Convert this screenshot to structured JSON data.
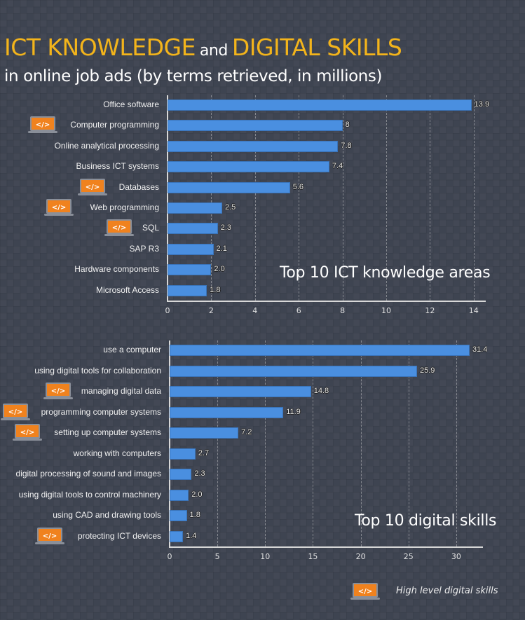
{
  "header": {
    "title_part1": "ICT KNOWLEDGE",
    "title_and": "and",
    "title_part2": "DIGITAL SKILLS",
    "subtitle": "in online job ads (by terms retrieved, in millions)"
  },
  "colors": {
    "background": "#3e4451",
    "title_accent": "#f3b41b",
    "bar": "#4a8fe0",
    "icon": "#f0821e",
    "icon_frame": "#8a8f99"
  },
  "legend": {
    "icon": "laptop-code-icon",
    "label": "High level digital skills"
  },
  "chart_data": [
    {
      "type": "bar",
      "orientation": "horizontal",
      "title": "Top 10 ICT knowledge areas",
      "xlabel": "",
      "ylabel": "",
      "xlim": [
        0,
        14.5
      ],
      "xticks": [
        "0",
        "2",
        "4",
        "6",
        "8",
        "10",
        "12",
        "14"
      ],
      "grid": "vertical dashed",
      "categories": [
        "Office software",
        "Computer programming",
        "Online analytical processing",
        "Business ICT systems",
        "Databases",
        "Web programming",
        "SQL",
        "SAP R3",
        "Hardware components",
        "Microsoft Access"
      ],
      "values": [
        13.9,
        8,
        7.8,
        7.4,
        5.6,
        2.5,
        2.3,
        2.1,
        2.0,
        1.8
      ],
      "value_labels": [
        "13.9",
        "8",
        "7.8",
        "7.4",
        "5.6",
        "2.5",
        "2.3",
        "2.1",
        "2.0",
        "1.8"
      ],
      "high_level": [
        false,
        true,
        false,
        false,
        true,
        true,
        true,
        false,
        false,
        false
      ]
    },
    {
      "type": "bar",
      "orientation": "horizontal",
      "title": "Top 10 digital skills",
      "xlabel": "",
      "ylabel": "",
      "xlim": [
        0,
        33
      ],
      "xticks": [
        "0",
        "5",
        "10",
        "15",
        "20",
        "25",
        "30"
      ],
      "grid": "vertical dashed",
      "categories": [
        "use a computer",
        "using digital tools for collaboration",
        "managing digital data",
        "programming computer systems",
        "setting up computer systems",
        "working with computers",
        "digital processing of sound and images",
        "using digital tools to control machinery",
        "using CAD and drawing tools",
        "protecting ICT devices"
      ],
      "values": [
        31.4,
        25.9,
        14.8,
        11.9,
        7.2,
        2.7,
        2.3,
        2.0,
        1.8,
        1.4
      ],
      "value_labels": [
        "31.4",
        "25.9",
        "14.8",
        "11.9",
        "7.2",
        "2.7",
        "2.3",
        "2.0",
        "1.8",
        "1.4"
      ],
      "high_level": [
        false,
        false,
        true,
        true,
        true,
        false,
        false,
        false,
        false,
        true
      ]
    }
  ]
}
